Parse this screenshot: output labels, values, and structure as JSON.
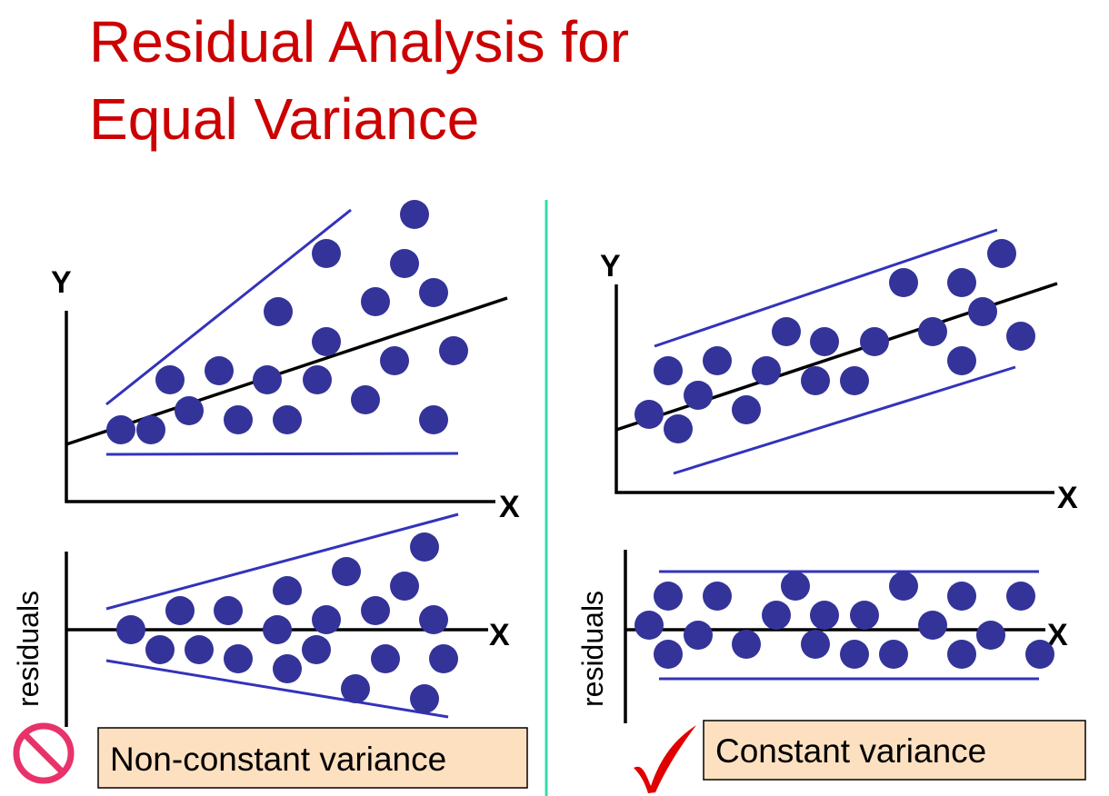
{
  "title": {
    "line1": "Residual Analysis for",
    "line2": "Equal Variance"
  },
  "left_panel": {
    "y_axis_label": "Y",
    "x_axis_label": "X",
    "residual_x_label": "X",
    "residual_axis_label": "residuals",
    "caption": "Non-constant variance",
    "verdict_icon": "prohibited-icon"
  },
  "right_panel": {
    "y_axis_label": "Y",
    "x_axis_label": "X",
    "residual_x_label": "X",
    "residual_axis_label": "residuals",
    "caption": "Constant variance",
    "verdict_icon": "checkmark-icon"
  },
  "colors": {
    "title": "#cc0000",
    "points": "#333399",
    "envelope": "#3333bb",
    "divider": "#33ddaa",
    "caption_fill": "#fde0c0",
    "prohibited": "#e8336a",
    "checkmark": "#e00000"
  }
}
